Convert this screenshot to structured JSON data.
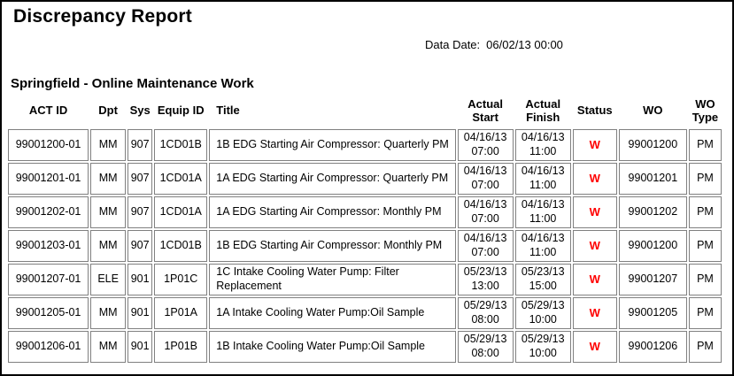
{
  "report": {
    "title": "Discrepancy Report",
    "data_date_label": "Data Date:",
    "data_date_value": "06/02/13 00:00",
    "section_title": "Springfield - Online Maintenance Work"
  },
  "table": {
    "status_color": "#ff0000",
    "border_color": "#808080",
    "columns": [
      {
        "key": "act_id",
        "label": "ACT ID"
      },
      {
        "key": "dpt",
        "label": "Dpt"
      },
      {
        "key": "sys",
        "label": "Sys"
      },
      {
        "key": "equip_id",
        "label": "Equip ID"
      },
      {
        "key": "title",
        "label": "Title"
      },
      {
        "key": "actual_start",
        "label": "Actual\nStart"
      },
      {
        "key": "actual_finish",
        "label": "Actual\nFinish"
      },
      {
        "key": "status",
        "label": "Status"
      },
      {
        "key": "wo",
        "label": "WO"
      },
      {
        "key": "wo_type",
        "label": "WO\nType"
      }
    ],
    "rows": [
      {
        "act_id": "99001200-01",
        "dpt": "MM",
        "sys": "907",
        "equip_id": "1CD01B",
        "title": "1B EDG Starting Air Compressor: Quarterly PM",
        "actual_start": "04/16/13\n07:00",
        "actual_finish": "04/16/13\n11:00",
        "status": "W",
        "wo": "99001200",
        "wo_type": "PM"
      },
      {
        "act_id": "99001201-01",
        "dpt": "MM",
        "sys": "907",
        "equip_id": "1CD01A",
        "title": "1A EDG Starting Air Compressor: Quarterly PM",
        "actual_start": "04/16/13\n07:00",
        "actual_finish": "04/16/13\n11:00",
        "status": "W",
        "wo": "99001201",
        "wo_type": "PM"
      },
      {
        "act_id": "99001202-01",
        "dpt": "MM",
        "sys": "907",
        "equip_id": "1CD01A",
        "title": "1A EDG Starting Air Compressor: Monthly PM",
        "actual_start": "04/16/13\n07:00",
        "actual_finish": "04/16/13\n11:00",
        "status": "W",
        "wo": "99001202",
        "wo_type": "PM"
      },
      {
        "act_id": "99001203-01",
        "dpt": "MM",
        "sys": "907",
        "equip_id": "1CD01B",
        "title": "1B EDG Starting Air Compressor: Monthly PM",
        "actual_start": "04/16/13\n07:00",
        "actual_finish": "04/16/13\n11:00",
        "status": "W",
        "wo": "99001200",
        "wo_type": "PM"
      },
      {
        "act_id": "99001207-01",
        "dpt": "ELE",
        "sys": "901",
        "equip_id": "1P01C",
        "title": "1C Intake Cooling Water Pump: Filter Replacement",
        "actual_start": "05/23/13\n13:00",
        "actual_finish": "05/23/13\n15:00",
        "status": "W",
        "wo": "99001207",
        "wo_type": "PM"
      },
      {
        "act_id": "99001205-01",
        "dpt": "MM",
        "sys": "901",
        "equip_id": "1P01A",
        "title": "1A Intake Cooling Water Pump:Oil Sample",
        "actual_start": "05/29/13\n08:00",
        "actual_finish": "05/29/13\n10:00",
        "status": "W",
        "wo": "99001205",
        "wo_type": "PM"
      },
      {
        "act_id": "99001206-01",
        "dpt": "MM",
        "sys": "901",
        "equip_id": "1P01B",
        "title": "1B Intake Cooling Water Pump:Oil Sample",
        "actual_start": "05/29/13\n08:00",
        "actual_finish": "05/29/13\n10:00",
        "status": "W",
        "wo": "99001206",
        "wo_type": "PM"
      }
    ]
  }
}
